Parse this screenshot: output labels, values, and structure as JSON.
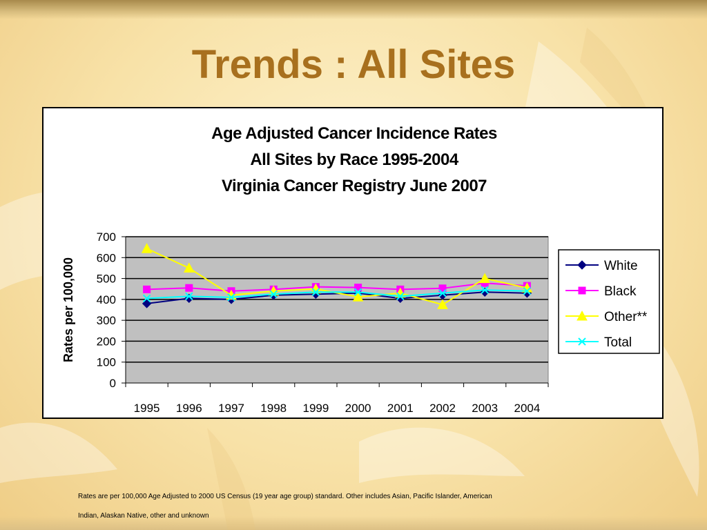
{
  "slide": {
    "title": "Trends : All Sites"
  },
  "chart_data": {
    "type": "line",
    "title": [
      "Age Adjusted Cancer Incidence Rates",
      "All Sites by Race 1995-2004",
      "Virginia Cancer Registry June 2007"
    ],
    "xlabel": "",
    "ylabel": "Rates per 100,000",
    "categories": [
      "1995",
      "1996",
      "1997",
      "1998",
      "1999",
      "2000",
      "2001",
      "2002",
      "2003",
      "2004"
    ],
    "ylim": [
      0,
      700
    ],
    "yticks": [
      0,
      100,
      200,
      300,
      400,
      500,
      600,
      700
    ],
    "grid": true,
    "plot_background": "#c0c0c0",
    "legend_position": "right",
    "series": [
      {
        "name": "White",
        "color": "#000080",
        "marker": "diamond",
        "values": [
          380,
          405,
          400,
          420,
          425,
          430,
          405,
          420,
          435,
          430
        ]
      },
      {
        "name": "Black",
        "color": "#ff00ff",
        "marker": "square",
        "values": [
          448,
          455,
          440,
          448,
          460,
          457,
          448,
          453,
          478,
          465
        ]
      },
      {
        "name": "Other**",
        "color": "#ffff00",
        "marker": "triangle",
        "values": [
          643,
          550,
          420,
          440,
          450,
          412,
          430,
          375,
          500,
          455
        ]
      },
      {
        "name": "Total",
        "color": "#00ffff",
        "marker": "x",
        "values": [
          405,
          415,
          410,
          425,
          435,
          435,
          415,
          430,
          445,
          440
        ]
      }
    ]
  },
  "footnote": {
    "line1": "Rates are per 100,000 Age Adjusted to 2000 US Census (19 year age group) standard.  Other includes Asian, Pacific Islander, American",
    "line2": "Indian, Alaskan Native, other and unknown"
  }
}
